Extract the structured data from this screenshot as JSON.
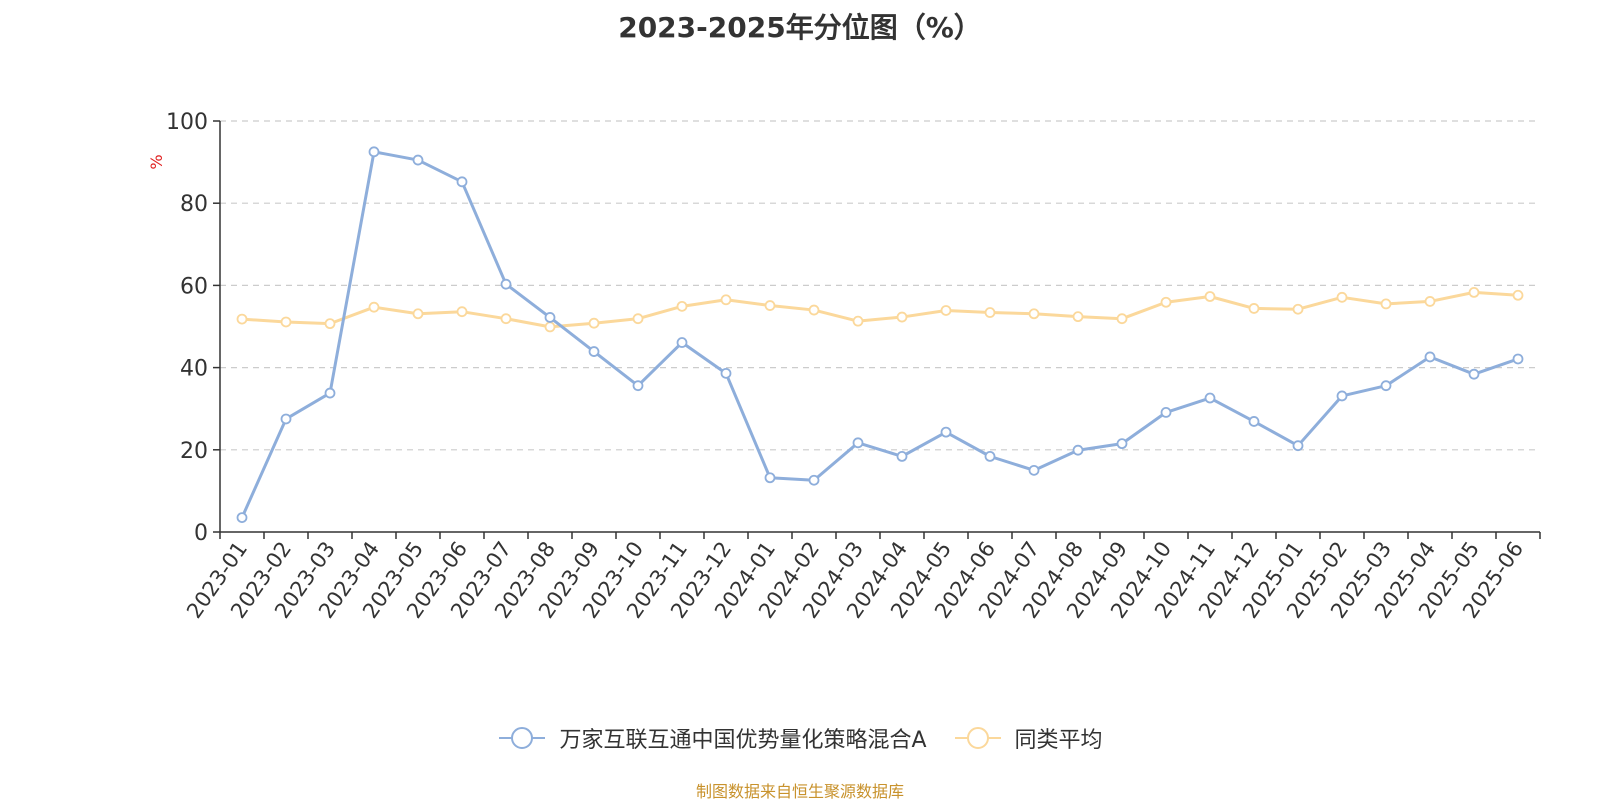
{
  "chart_data": {
    "type": "line",
    "title": "2023-2025年分位图（%）",
    "ylabel": "%",
    "xlabel": "",
    "ylim": [
      0,
      100
    ],
    "yticks": [
      0,
      20,
      40,
      60,
      80,
      100
    ],
    "grid": true,
    "legend_position": "bottom",
    "categories": [
      "2023-01",
      "2023-02",
      "2023-03",
      "2023-04",
      "2023-05",
      "2023-06",
      "2023-07",
      "2023-08",
      "2023-09",
      "2023-10",
      "2023-11",
      "2023-12",
      "2024-01",
      "2024-02",
      "2024-03",
      "2024-04",
      "2024-05",
      "2024-06",
      "2024-07",
      "2024-08",
      "2024-09",
      "2024-10",
      "2024-11",
      "2024-12",
      "2025-01",
      "2025-02",
      "2025-03",
      "2025-04",
      "2025-05",
      "2025-06"
    ],
    "series": [
      {
        "name": "万家互联互通中国优势量化策略混合A",
        "color": "#8eaedb",
        "values": [
          3.5,
          27.5,
          33.8,
          92.5,
          90.5,
          85.2,
          60.3,
          52.2,
          43.9,
          35.6,
          46.1,
          38.6,
          13.2,
          12.6,
          21.7,
          18.4,
          24.3,
          18.4,
          15.0,
          19.9,
          21.5,
          29.1,
          32.6,
          26.9,
          21.0,
          33.1,
          35.6,
          42.6,
          38.4,
          42.1
        ]
      },
      {
        "name": "同类平均",
        "color": "#fbd89b",
        "values": [
          51.8,
          51.1,
          50.7,
          54.7,
          53.1,
          53.6,
          51.9,
          49.9,
          50.8,
          51.9,
          54.9,
          56.5,
          55.1,
          54.0,
          51.3,
          52.3,
          53.9,
          53.4,
          53.1,
          52.4,
          51.9,
          55.9,
          57.3,
          54.4,
          54.2,
          57.1,
          55.5,
          56.1,
          58.3,
          57.6
        ]
      }
    ]
  },
  "source_text": "制图数据来自恒生聚源数据库",
  "colors": {
    "source": "#c8922c",
    "ylabel": "#e02020",
    "grid": "#cccccc",
    "axis": "#333333"
  }
}
